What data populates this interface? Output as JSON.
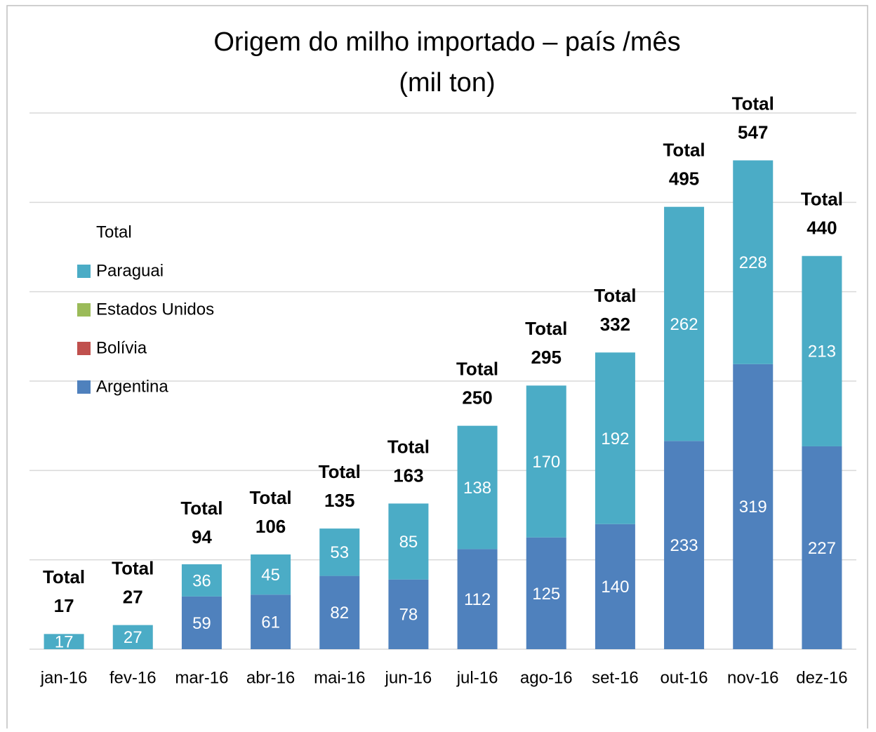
{
  "chart_data": {
    "type": "stacked_bar",
    "title": "Origem do milho importado – país /mês",
    "subtitle": "(mil ton)",
    "categories": [
      "jan-16",
      "fev-16",
      "mar-16",
      "abr-16",
      "mai-16",
      "jun-16",
      "jul-16",
      "ago-16",
      "set-16",
      "out-16",
      "nov-16",
      "dez-16"
    ],
    "series": [
      {
        "name": "Argentina",
        "color": "#4f81bd",
        "values": [
          null,
          null,
          59,
          61,
          82,
          78,
          112,
          125,
          140,
          233,
          319,
          227
        ]
      },
      {
        "name": "Bolívia",
        "color": "#c0504d",
        "values": [
          null,
          null,
          null,
          null,
          null,
          null,
          null,
          null,
          null,
          null,
          null,
          null
        ]
      },
      {
        "name": "Estados Unidos",
        "color": "#9bbb59",
        "values": [
          null,
          null,
          null,
          null,
          null,
          null,
          null,
          null,
          null,
          null,
          null,
          null
        ]
      },
      {
        "name": "Paraguai",
        "color": "#4bacc6",
        "values": [
          17,
          27,
          36,
          45,
          53,
          85,
          138,
          170,
          192,
          262,
          228,
          213
        ]
      },
      {
        "name": "Total",
        "color": null,
        "label_only": true,
        "values": [
          17,
          27,
          94,
          106,
          135,
          163,
          250,
          295,
          332,
          495,
          547,
          440
        ]
      }
    ],
    "ylim": [
      0,
      600
    ],
    "yticks": [
      0,
      100,
      200,
      300,
      400,
      500,
      600
    ],
    "ytick_labels": false,
    "grid": true,
    "legend": "left"
  }
}
